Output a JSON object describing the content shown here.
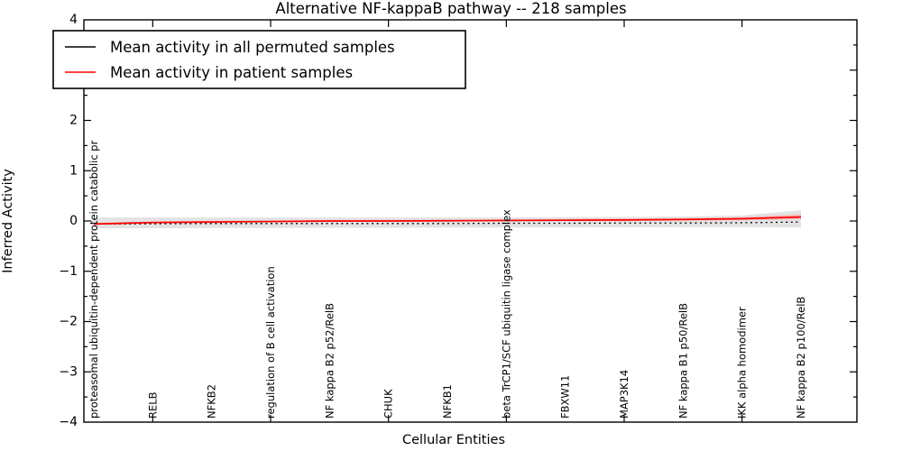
{
  "chart_data": {
    "type": "line",
    "title": "Alternative NF-kappaB pathway -- 218 samples",
    "xlabel": "Cellular Entities",
    "ylabel": "Inferred Activity",
    "ylim": [
      -4,
      4
    ],
    "yticks": [
      4,
      3,
      2,
      1,
      0,
      -1,
      -2,
      -3,
      -4
    ],
    "ytick_minor_step": 0.5,
    "grid": false,
    "background": "#ffffff",
    "frame_color": "#000000",
    "xtick_indices": [
      1,
      3,
      5,
      7,
      9,
      11
    ],
    "categories": [
      "proteasomal ubiquitin-dependent protein catabolic pr",
      "RELB",
      "NFKB2",
      "regulation of B cell activation",
      "NF kappa B2 p52/RelB",
      "CHUK",
      "NFKB1",
      "beta TrCP1/SCF ubiquitin ligase complex",
      "FBXW11",
      "MAP3K14",
      "NF kappa B1 p50/RelB",
      "IKK alpha homodimer",
      "NF kappa B2 p100/RelB"
    ],
    "series": [
      {
        "name": "Mean activity in all permuted samples",
        "color": "#000000",
        "style": "dotted",
        "values": [
          -0.06,
          -0.055,
          -0.05,
          -0.05,
          -0.05,
          -0.05,
          -0.05,
          -0.045,
          -0.045,
          -0.04,
          -0.04,
          -0.035,
          -0.02
        ]
      },
      {
        "name": "Mean activity in patient samples",
        "color": "#ff0000",
        "style": "solid",
        "values": [
          -0.06,
          -0.03,
          -0.02,
          -0.01,
          0.0,
          0.0,
          0.005,
          0.01,
          0.015,
          0.02,
          0.03,
          0.045,
          0.08
        ]
      }
    ],
    "bands": [
      {
        "name": "permuted-samples-std-band",
        "color": "#e3e3e3",
        "upper": [
          0.07,
          0.07,
          0.07,
          0.07,
          0.07,
          0.07,
          0.07,
          0.07,
          0.075,
          0.08,
          0.09,
          0.11,
          0.215
        ],
        "lower": [
          -0.15,
          -0.145,
          -0.14,
          -0.14,
          -0.135,
          -0.135,
          -0.13,
          -0.13,
          -0.125,
          -0.125,
          -0.12,
          -0.12,
          -0.13
        ]
      },
      {
        "name": "patient-samples-std-band",
        "color": "#f5b6b6",
        "upper": [
          -0.04,
          -0.01,
          0.0,
          0.005,
          0.015,
          0.02,
          0.025,
          0.03,
          0.04,
          0.045,
          0.055,
          0.075,
          0.135
        ],
        "lower": [
          -0.075,
          -0.05,
          -0.04,
          -0.03,
          -0.02,
          -0.015,
          -0.01,
          -0.005,
          0.0,
          0.0,
          0.005,
          0.015,
          0.035
        ]
      }
    ],
    "legend": {
      "position": "upper left"
    }
  }
}
